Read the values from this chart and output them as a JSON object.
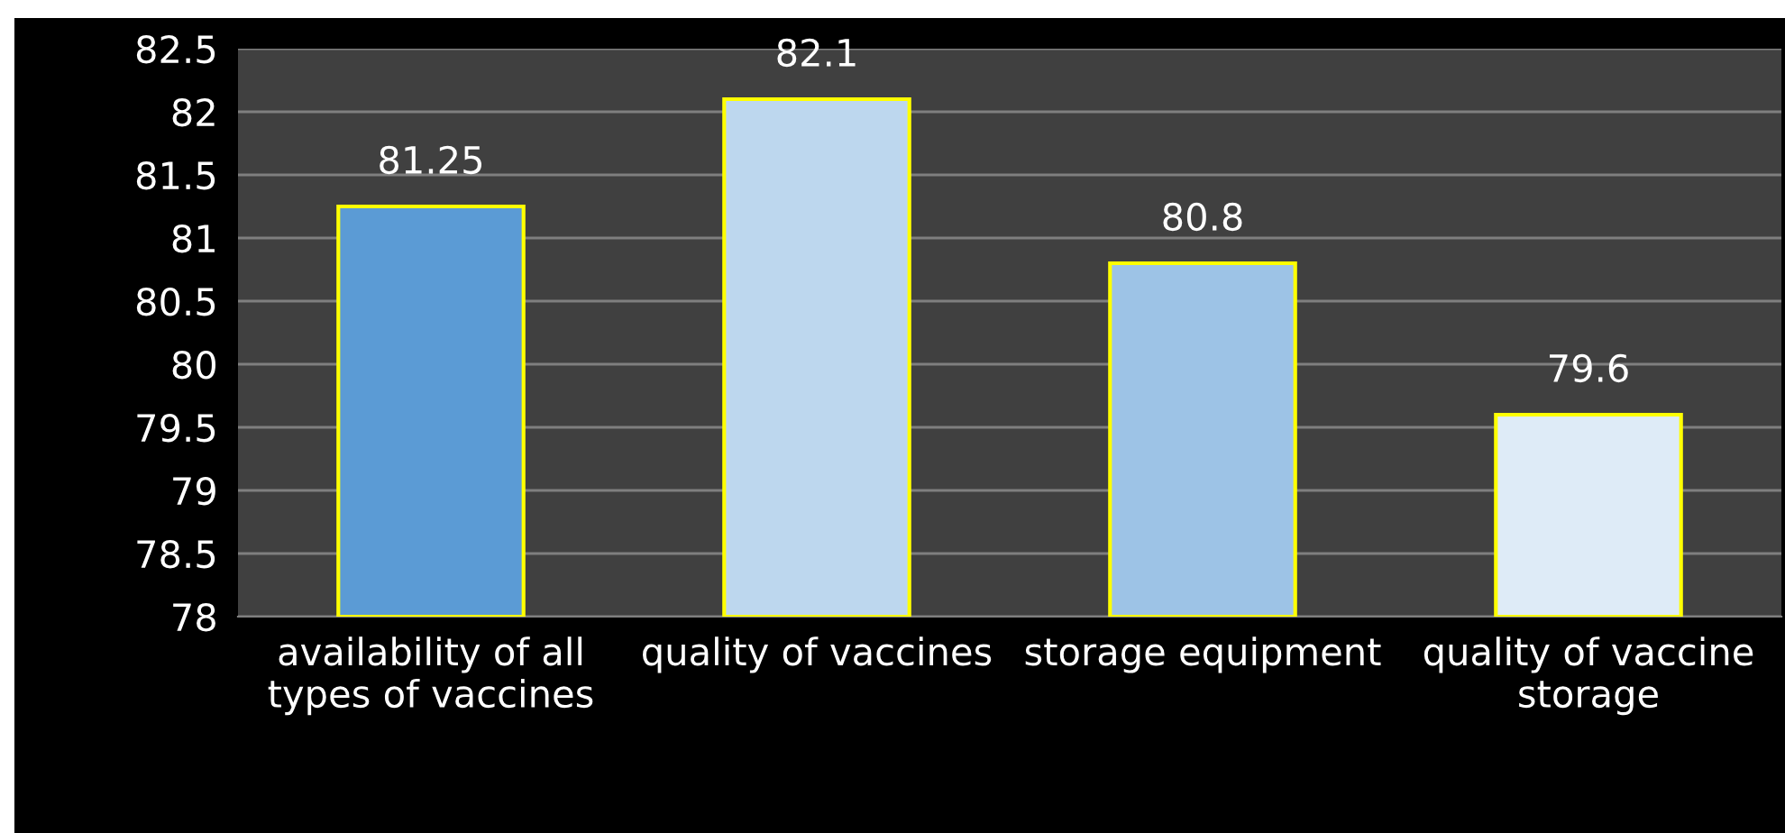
{
  "chart_data": {
    "type": "bar",
    "categories": [
      "availability of all\ntypes of vaccines",
      "quality of vaccines",
      "storage equipment",
      "quality of vaccine\nstorage"
    ],
    "values": [
      81.25,
      82.1,
      80.8,
      79.6
    ],
    "colors": [
      "#5b9bd5",
      "#bdd7ee",
      "#9dc3e6",
      "#deebf7"
    ],
    "ylim": [
      78,
      82.5
    ],
    "yticks": [
      78,
      78.5,
      79,
      79.5,
      80,
      80.5,
      81,
      81.5,
      82,
      82.5
    ],
    "grid": "y",
    "data_labels": true
  }
}
